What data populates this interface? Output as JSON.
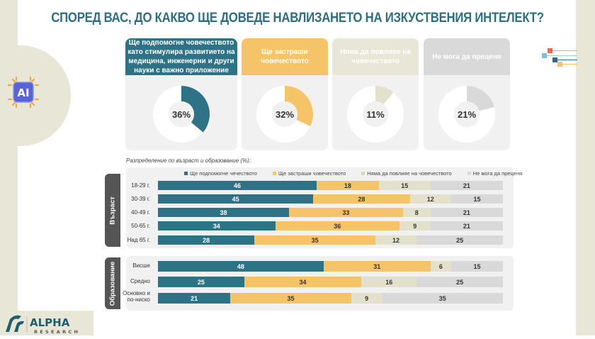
{
  "title": "СПОРЕД ВАС, ДО КАКВО ЩЕ ДОВЕДЕ НАВЛИЗАНЕТО НА ИЗКУСТВЕНИЯ ИНТЕЛЕКТ?",
  "icon": {
    "name": "ai-chip-icon",
    "label": "AI"
  },
  "colors": {
    "help": "#2e7285",
    "threaten": "#f5c469",
    "no_effect": "#e3e1cc",
    "cannot_say": "#d9d9d9",
    "title": "#2e6e80"
  },
  "cards": [
    {
      "label": "Ще подпомогне човечеството като стимулира развитието на медицина, инженерни и други науки с важно приложение",
      "value_label": "36%",
      "value": 36,
      "head_color": "#2e7285",
      "head_text_color": "#ffffff",
      "fill": "#2e7285"
    },
    {
      "label": "Ще застраши човечеството",
      "value_label": "32%",
      "value": 32,
      "head_color": "#f5c469",
      "head_text_color": "#ffffff",
      "fill": "#f5c469"
    },
    {
      "label": "Няма да повлияе на човечеството",
      "value_label": "11%",
      "value": 11,
      "head_color": "#e8e6d6",
      "head_text_color": "#ffffff",
      "fill": "#e3e1cc"
    },
    {
      "label": "Не мога да преценя",
      "value_label": "21%",
      "value": 21,
      "head_color": "#d9d9d9",
      "head_text_color": "#ffffff",
      "fill": "#d9d9d9"
    }
  ],
  "subtitle": "Разпределение по възраст и образование (%):",
  "legend": [
    {
      "label": "Ще подпомогне чеч​ество​то",
      "color": "#2e7285"
    },
    {
      "label": "Ще застраши човечеството",
      "color": "#f5c469"
    },
    {
      "label": "Няма да повлияе на човечеството",
      "color": "#d9d7c0"
    },
    {
      "label": "Не мога да преценя",
      "color": "#d9d9d9"
    }
  ],
  "groups": [
    {
      "label": "Възраст"
    },
    {
      "label": "Образование"
    }
  ],
  "chart_data": {
    "type": "bar",
    "orientation": "horizontal",
    "stacked": true,
    "title": "Разпределение по възраст и образование (%):",
    "xlabel": "",
    "ylabel": "",
    "xlim": [
      0,
      100
    ],
    "series": [
      {
        "name": "Ще подпомогне човечеството",
        "color": "#2e7285",
        "text_color": "#ffffff"
      },
      {
        "name": "Ще застраши човечеството",
        "color": "#f5c469",
        "text_color": "#333333"
      },
      {
        "name": "Няма да повлияе на човечеството",
        "color": "#e3e1cc",
        "text_color": "#333333"
      },
      {
        "name": "Не мога да преценя",
        "color": "#d9d9d9",
        "text_color": "#333333"
      }
    ],
    "groups": [
      {
        "name": "Възраст",
        "categories": [
          "18-29 г.",
          "30-39 г.",
          "40-49 г.",
          "50-65 г.",
          "Над 65 г."
        ],
        "values": [
          [
            46,
            18,
            15,
            21
          ],
          [
            45,
            28,
            12,
            15
          ],
          [
            38,
            33,
            8,
            21
          ],
          [
            34,
            36,
            9,
            21
          ],
          [
            28,
            35,
            12,
            25
          ]
        ]
      },
      {
        "name": "Образование",
        "categories": [
          "Висше",
          "Средно",
          "Основно и по-ниско"
        ],
        "values": [
          [
            48,
            31,
            6,
            15
          ],
          [
            25,
            34,
            16,
            25
          ],
          [
            21,
            35,
            9,
            35
          ]
        ]
      }
    ],
    "donuts": [
      {
        "label": "Ще подпомогне човечеството като стимулира развитието на медицина, инженерни и други науки с важно приложение",
        "value": 36
      },
      {
        "label": "Ще застраши човечеството",
        "value": 32
      },
      {
        "label": "Няма да повлияе на човечеството",
        "value": 11
      },
      {
        "label": "Не мога да преценя",
        "value": 21
      }
    ],
    "legend_position": "top"
  },
  "logo": {
    "name": "ALPHA",
    "sub": "RESEARCH"
  }
}
